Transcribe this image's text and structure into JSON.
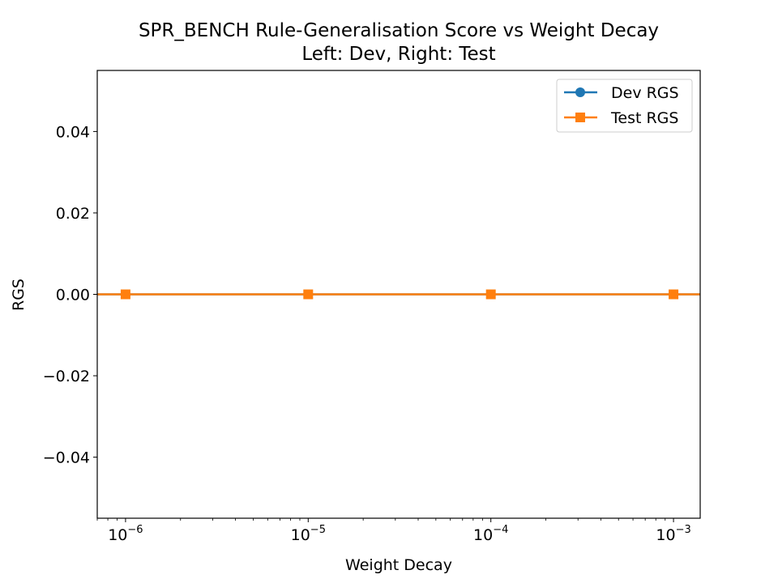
{
  "chart_data": {
    "type": "line",
    "title": "SPR_BENCH Rule-Generalisation Score vs Weight Decay",
    "subtitle": "Left: Dev, Right: Test",
    "xlabel": "Weight Decay",
    "ylabel": "RGS",
    "x_scale": "log",
    "x": [
      1e-06,
      1e-05,
      0.0001,
      0.001
    ],
    "xlim": [
      7e-07,
      0.0014
    ],
    "ylim": [
      -0.055,
      0.055
    ],
    "y_ticks": [
      {
        "value": -0.04,
        "label": "−0.04"
      },
      {
        "value": -0.02,
        "label": "−0.02"
      },
      {
        "value": 0.0,
        "label": "0.00"
      },
      {
        "value": 0.02,
        "label": "0.02"
      },
      {
        "value": 0.04,
        "label": "0.04"
      }
    ],
    "x_ticks": [
      {
        "value": 1e-06,
        "base": "10",
        "exp": "−6"
      },
      {
        "value": 1e-05,
        "base": "10",
        "exp": "−5"
      },
      {
        "value": 0.0001,
        "base": "10",
        "exp": "−4"
      },
      {
        "value": 0.001,
        "base": "10",
        "exp": "−3"
      }
    ],
    "grid": false,
    "legend_position": "top-right",
    "series": [
      {
        "name": "Dev RGS",
        "values": [
          0.0,
          0.0,
          0.0,
          0.0
        ],
        "color": "#1f77b4",
        "marker": "circle"
      },
      {
        "name": "Test RGS",
        "values": [
          0.0,
          0.0,
          0.0,
          0.0
        ],
        "color": "#ff7f0e",
        "marker": "square"
      }
    ]
  }
}
